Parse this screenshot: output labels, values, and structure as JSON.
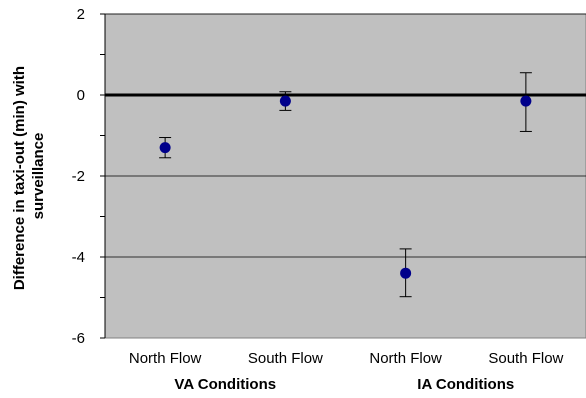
{
  "chart_data": {
    "type": "scatter",
    "title": "",
    "ylabel": [
      "Difference in taxi-out (min) with",
      "surveillance"
    ],
    "xlabel": "",
    "ylim": [
      -6,
      2
    ],
    "yticks": [
      2,
      0,
      -2,
      -4,
      -6
    ],
    "yticks_label": [
      "2",
      "0",
      "-2",
      "-4",
      "-6"
    ],
    "grid": true,
    "categories": [
      "North Flow",
      "South Flow",
      "North Flow",
      "South Flow"
    ],
    "groups": [
      {
        "label": "VA Conditions",
        "members": [
          0,
          1
        ]
      },
      {
        "label": "IA Conditions",
        "members": [
          2,
          3
        ]
      }
    ],
    "series": [
      {
        "values": [
          -1.3,
          -0.15,
          -4.4,
          -0.15
        ],
        "err_low": [
          -1.55,
          -0.38,
          -4.98,
          -0.9
        ],
        "err_high": [
          -1.05,
          0.08,
          -3.8,
          0.55
        ]
      }
    ],
    "reference_line": 0,
    "colors": {
      "plot_bg": "#C0C0C0",
      "marker": "#00008B",
      "grid": "#000000",
      "zero_line": "#000000"
    }
  }
}
